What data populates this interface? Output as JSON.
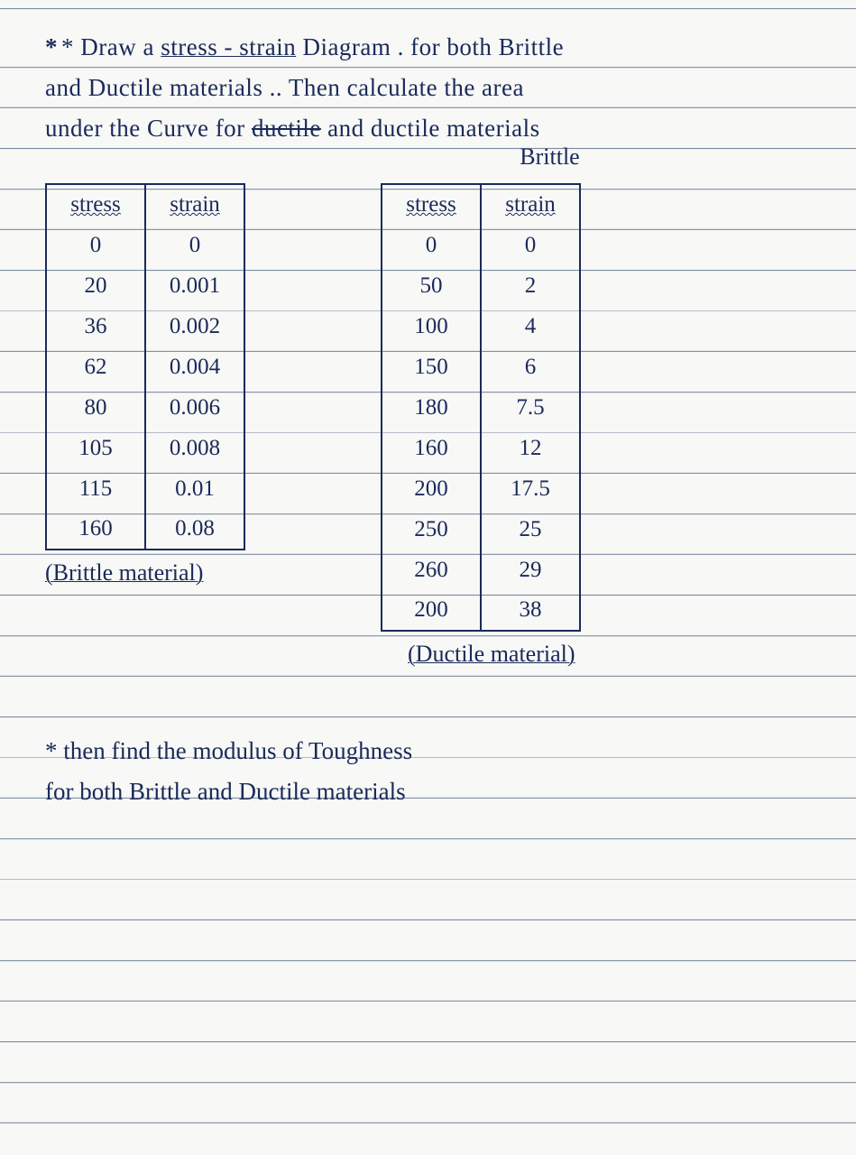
{
  "prompt": {
    "line1_pre": "* Draw a ",
    "line1_mid": "stress - strain",
    "line1_post": " Diagram . for both Brittle",
    "line2": "and Ductile materials .. Then calculate the area",
    "line3_pre": "under the Curve for ",
    "line3_strike": "ductile",
    "line3_post": " and ductile materials",
    "correction": "Brittle"
  },
  "brittle": {
    "headers": {
      "c1": "stress",
      "c2": "strain"
    },
    "rows": [
      {
        "stress": "0",
        "strain": "0"
      },
      {
        "stress": "20",
        "strain": "0.001"
      },
      {
        "stress": "36",
        "strain": "0.002"
      },
      {
        "stress": "62",
        "strain": "0.004"
      },
      {
        "stress": "80",
        "strain": "0.006"
      },
      {
        "stress": "105",
        "strain": "0.008"
      },
      {
        "stress": "115",
        "strain": "0.01"
      },
      {
        "stress": "160",
        "strain": "0.08"
      }
    ],
    "caption": "Brittle material"
  },
  "ductile": {
    "headers": {
      "c1": "stress",
      "c2": "strain"
    },
    "rows": [
      {
        "stress": "0",
        "strain": "0"
      },
      {
        "stress": "50",
        "strain": "2"
      },
      {
        "stress": "100",
        "strain": "4"
      },
      {
        "stress": "150",
        "strain": "6"
      },
      {
        "stress": "180",
        "strain": "7.5"
      },
      {
        "stress": "160",
        "strain": "12"
      },
      {
        "stress": "200",
        "strain": "17.5"
      },
      {
        "stress": "250",
        "strain": "25"
      },
      {
        "stress": "260",
        "strain": "29"
      },
      {
        "stress": "200",
        "strain": "38"
      }
    ],
    "caption": "Ductile material"
  },
  "footer": {
    "line1": "* then find the modulus of Toughness",
    "line2": "for both Brittle and Ductile materials"
  },
  "colors": {
    "ink": "#1a2a5a",
    "rule": "#7a8aa0",
    "paper": "#f8f8f6"
  }
}
